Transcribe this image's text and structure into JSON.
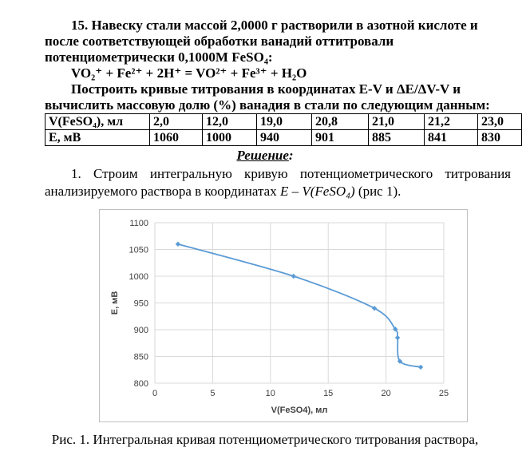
{
  "problem": {
    "line1": "15. Навеску стали массой 2,0000 г растворили в азотной кислоте и",
    "line2": "после соответствующей обработки ванадий оттитровали",
    "line3": "потенциометрически 0,1000М FeSO₄:",
    "equation": "VO₂⁺ + Fe²⁺ + 2H⁺ = VO²⁺ + Fe³⁺ + H₂O",
    "line5": "Построить кривые титрования в координатах E-V и ΔE/ΔV-V и",
    "line6": "вычислить массовую долю (%) ванадия в стали по следующим данным:"
  },
  "table": {
    "rows": [
      {
        "header": "V(FeSO₄), мл",
        "values": [
          "2,0",
          "12,0",
          "19,0",
          "20,8",
          "21,0",
          "21,2",
          "23,0"
        ]
      },
      {
        "header": "Е, мВ",
        "values": [
          "1060",
          "1000",
          "940",
          "901",
          "885",
          "841",
          "830"
        ]
      }
    ]
  },
  "solution_label": "Решение",
  "solution_colon": ":",
  "paragraph": {
    "line1": "1. Строим интегральную кривую потенциометрического титрования",
    "line2_prefix": "анализируемого раствора в координатах ",
    "line2_formula": "Е – V(FeSO₄)",
    "line2_suffix": " (рис 1)."
  },
  "chart_data": {
    "type": "line",
    "x": [
      2,
      12,
      19,
      20.8,
      21,
      21.2,
      23
    ],
    "series": [
      {
        "values": [
          1060,
          1000,
          940,
          901,
          885,
          841,
          830
        ]
      }
    ],
    "xlabel": "V(FeSO4), мл",
    "ylabel": "Е, мВ",
    "xlim": [
      0,
      25
    ],
    "ylim": [
      800,
      1100
    ],
    "xticks": [
      0,
      5,
      10,
      15,
      20,
      25
    ],
    "yticks": [
      800,
      850,
      900,
      950,
      1000,
      1050,
      1100
    ],
    "grid": true,
    "line_color": "#5b9bd5"
  },
  "caption": "Рис. 1. Интегральная кривая потенциометрического титрования раствора,"
}
